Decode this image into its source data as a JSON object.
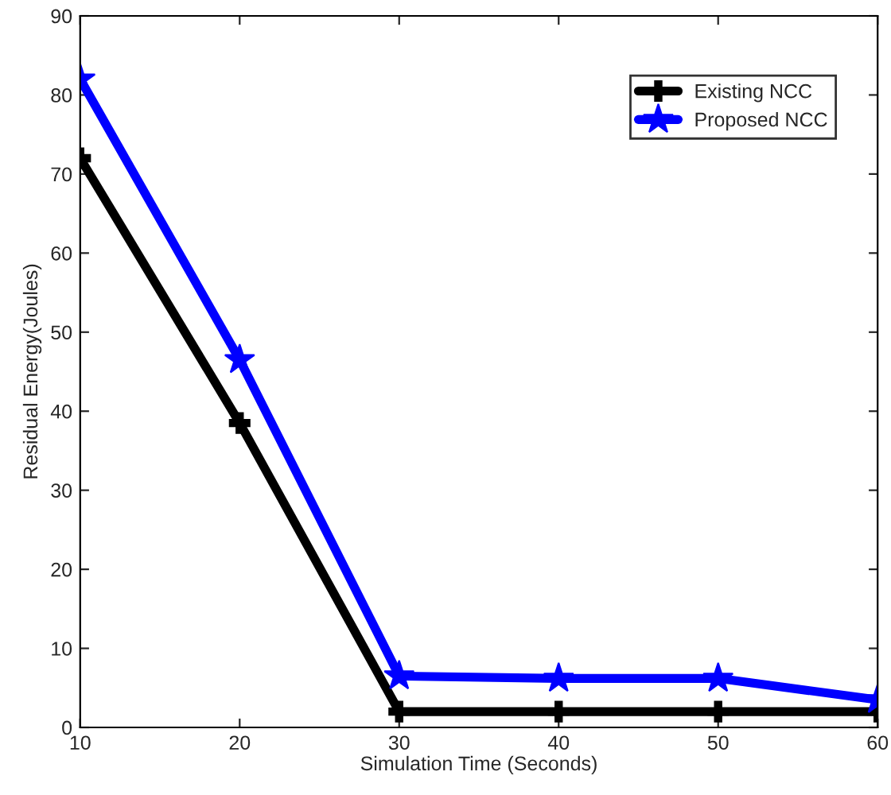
{
  "chart_data": {
    "type": "line",
    "xlabel": "Simulation Time (Seconds)",
    "ylabel": "Residual Energy(Joules)",
    "x": [
      10,
      20,
      30,
      40,
      50,
      60
    ],
    "series": [
      {
        "name": "Existing NCC",
        "color": "#000000",
        "marker": "cross",
        "values": [
          72,
          38.5,
          2,
          2,
          2,
          2
        ]
      },
      {
        "name": "Proposed NCC",
        "color": "#0000ff",
        "marker": "star",
        "values": [
          82,
          46.5,
          6.5,
          6.2,
          6.2,
          3.5
        ]
      }
    ],
    "xlim": [
      10,
      60
    ],
    "xticks": [
      10,
      20,
      30,
      40,
      50,
      60
    ],
    "ylim": [
      0,
      90
    ],
    "yticks": [
      0,
      10,
      20,
      30,
      40,
      50,
      60,
      70,
      80,
      90
    ],
    "grid": false,
    "legend": "top right",
    "line_style": "solid"
  }
}
